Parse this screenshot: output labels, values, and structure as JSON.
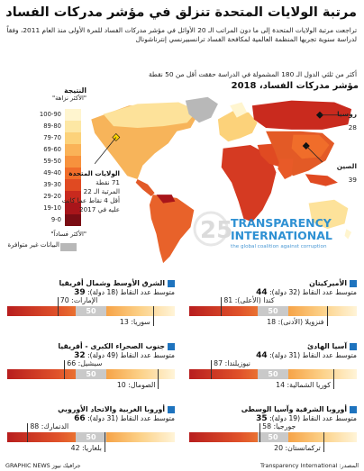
{
  "header": {
    "title": "مرتبة الولايات المتحدة تنزلق في مؤشر مدركات الفساد",
    "subtitle": "تراجعت مرتبة الولايات المتحدة إلى ما دون المراتب الـ 20 الأوائل في مؤشر مدركات الفساد للمرة الأولى منذ العام 2011، وفقاً لدراسة سنوية تجريها المنظمة العالمية لمكافحة الفساد ترانسبيرنسي إنترناشونال"
  },
  "map": {
    "title": "مؤشر مدركات الفساد، 2018",
    "subtitle": "أكثر من ثلثي الدول الـ 180 المشمولة في الدراسة حققت أقل من 50 نقطة",
    "legend_title": "النتيجة",
    "legend_top": "\"الأكثر نزاهة\"",
    "legend_bottom": "\"الأكثر فساداً\"",
    "legend_ranges": [
      "100-90",
      "89-80",
      "79-70",
      "69-60",
      "59-50",
      "49-40",
      "39-30",
      "29-20",
      "19-10",
      "9-0"
    ],
    "legend_colors": [
      "#fff5cf",
      "#fde7a4",
      "#fcd27a",
      "#fab358",
      "#f7923d",
      "#f06d2a",
      "#e04a22",
      "#c92a1e",
      "#a8151a",
      "#7a0d14"
    ],
    "no_data": "البيانات غير متوافرة",
    "us_callout": {
      "name": "الولايات المتحدة",
      "points": "71 نقطة",
      "rank": "المرتبة الـ 22",
      "note1": "أقل 4 نقاط عما كانت",
      "note2": "عليه في 2017"
    },
    "russia": {
      "name": "روسيا",
      "value": "28"
    },
    "china": {
      "name": "الصين",
      "value": "39"
    }
  },
  "watermark": {
    "big": "25",
    "line1": "TRANSPARENCY",
    "line2": "INTERNATIONAL",
    "line3": "the global coalition against corruption"
  },
  "panels": [
    {
      "name": "الأميركيتان",
      "avg_label": "متوسط عدد النقاط (32 دولة):",
      "avg": "44",
      "top": "كندا (الأعلى): 81",
      "top_value": 81,
      "bottom": "فنزويلا (الأدنى): 18",
      "bottom_value": 18
    },
    {
      "name": "الشرق الأوسط وشمال أفريقيا",
      "avg_label": "متوسط عدد النقاط (18 دولة):",
      "avg": "39",
      "top": "الإمارات: 70",
      "top_value": 70,
      "bottom": "سوريا: 13",
      "bottom_value": 13
    },
    {
      "name": "آسيا الهادئ",
      "avg_label": "متوسط عدد النقاط (31 دولة):",
      "avg": "44",
      "top": "نيوزيلندا: 87",
      "top_value": 87,
      "bottom": "كوريا الشمالية: 14",
      "bottom_value": 14
    },
    {
      "name": "جنوب الصحراء الكبرى - أفريقيا",
      "avg_label": "متوسط عدد النقاط (49 دولة):",
      "avg": "32",
      "top": "سيشيل: 66",
      "top_value": 66,
      "bottom": "الصومال: 10",
      "bottom_value": 10
    },
    {
      "name": "أوروبا الشرقية وآسيا الوسطى",
      "avg_label": "متوسط عدد النقاط (19 دولة):",
      "avg": "35",
      "top": "جورجيا: 58",
      "top_value": 58,
      "bottom": "تركمانستان: 20",
      "bottom_value": 20
    },
    {
      "name": "أوروبا الغربية والاتحاد الأوروبي",
      "avg_label": "متوسط عدد النقاط (31 دولة):",
      "avg": "66",
      "top": "الدنمارك: 88",
      "top_value": 88,
      "bottom": "بلغاريا: 42",
      "bottom_value": 42
    }
  ],
  "bar_mid_label": "50",
  "footer": {
    "source": "المصدر: Transparency International",
    "credit": "جرافيك نيوز GRAPHIC NEWS"
  },
  "chart_data": {
    "type": "bar",
    "categories": [
      "الأميركيتان",
      "الشرق الأوسط وشمال أفريقيا",
      "آسيا الهادئ",
      "جنوب الصحراء الكبرى - أفريقيا",
      "أوروبا الشرقية وآسيا الوسطى",
      "أوروبا الغربية والاتحاد الأوروبي"
    ],
    "series": [
      {
        "name": "متوسط عدد النقاط",
        "values": [
          44,
          39,
          44,
          32,
          35,
          66
        ]
      },
      {
        "values": [
          81,
          70,
          87,
          66,
          58,
          88
        ]
      },
      {
        "values": [
          18,
          13,
          14,
          10,
          20,
          42
        ]
      }
    ],
    "ylim": [
      0,
      100
    ]
  }
}
